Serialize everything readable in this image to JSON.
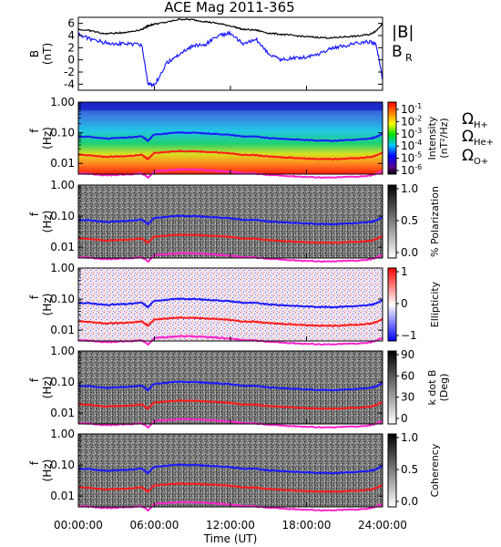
{
  "title": "ACE Mag 2011-365",
  "legend_top": {
    "b_label": "|B|",
    "br_label": "B",
    "br_sub": "R"
  },
  "gyro_labels": [
    {
      "sym": "Ω",
      "sub": "H+",
      "color": "#1a1aff"
    },
    {
      "sym": "Ω",
      "sub": "He+",
      "color": "#ff1a1a"
    },
    {
      "sym": "Ω",
      "sub": "O+",
      "color": "#ff22cc"
    }
  ],
  "colors": {
    "B_total": "#000000",
    "B_R": "#1a1aff",
    "H_plus": "#1a1aff",
    "He_plus": "#ff1a1a",
    "O_plus": "#ff22cc"
  },
  "x_axis": {
    "label": "Time (UT)",
    "ticks": [
      "00:00:00",
      "06:00:00",
      "12:00:00",
      "18:00:00",
      "24:00:00"
    ]
  },
  "chart_data": [
    {
      "type": "line",
      "panel": "magnetic-field",
      "ylabel_line1": "B",
      "ylabel_line2": "(nT)",
      "yticks": [
        "6",
        "4",
        "2",
        "0",
        "-2",
        "-4"
      ],
      "ylim": [
        -5,
        7
      ],
      "x_hours": [
        0,
        1,
        2,
        3,
        4,
        5,
        5.5,
        6,
        7,
        8,
        9,
        10,
        11,
        12,
        13,
        14,
        15,
        16,
        17,
        18,
        19,
        20,
        21,
        22,
        23,
        23.5,
        24
      ],
      "series": [
        {
          "name": "|B|",
          "values": [
            5.0,
            4.8,
            4.3,
            4.4,
            4.6,
            5.0,
            5.6,
            5.9,
            6.2,
            6.7,
            6.6,
            6.3,
            6.0,
            5.6,
            5.0,
            4.9,
            4.4,
            4.2,
            4.0,
            3.8,
            3.7,
            3.6,
            3.8,
            3.9,
            4.2,
            4.8,
            6.0
          ]
        },
        {
          "name": "B_R",
          "values": [
            4.2,
            3.4,
            2.9,
            2.7,
            2.6,
            2.5,
            -4.0,
            -4.2,
            -0.5,
            1.0,
            2.3,
            2.5,
            4.0,
            4.4,
            2.5,
            3.5,
            1.0,
            0.0,
            0.3,
            0.5,
            1.0,
            2.0,
            2.3,
            2.8,
            3.0,
            2.5,
            -3.2
          ]
        }
      ]
    },
    {
      "type": "heatmap",
      "panel": "power-spectral-density",
      "ylabel_line1": "f",
      "ylabel_line2": "(Hz)",
      "yticks": [
        "1.00",
        "0.10",
        "0.01"
      ],
      "colorbar_label": "Intensity (nT²/Hz)",
      "colorbar_ticks": [
        "10",
        "10",
        "10",
        "10",
        "10",
        "10"
      ],
      "colorbar_tick_exps": [
        "-1",
        "-2",
        "-3",
        "-4",
        "-5",
        "-6"
      ]
    },
    {
      "type": "heatmap",
      "panel": "polarization",
      "ylabel_line1": "f",
      "ylabel_line2": "(Hz)",
      "yticks": [
        "1.00",
        "0.10",
        "0.01"
      ],
      "colorbar_label": "% Polarization",
      "colorbar_ticks": [
        "1.0",
        "0.5",
        "0.0"
      ]
    },
    {
      "type": "heatmap",
      "panel": "ellipticity",
      "ylabel_line1": "f",
      "ylabel_line2": "(Hz)",
      "yticks": [
        "1.00",
        "0.10",
        "0.01"
      ],
      "colorbar_label": "Ellipticity",
      "colorbar_ticks": [
        "1",
        "0",
        "−1"
      ]
    },
    {
      "type": "heatmap",
      "panel": "wave-normal-angle",
      "ylabel_line1": "f",
      "ylabel_line2": "(Hz)",
      "yticks": [
        "1.00",
        "0.10",
        "0.01"
      ],
      "colorbar_label_line1": "k dot B",
      "colorbar_label_line2": "(Deg)",
      "colorbar_ticks": [
        "90",
        "60",
        "30",
        "0"
      ]
    },
    {
      "type": "heatmap",
      "panel": "coherency",
      "ylabel_line1": "f",
      "ylabel_line2": "(Hz)",
      "yticks": [
        "1.00",
        "0.10",
        "0.01"
      ],
      "colorbar_label": "Coherency",
      "colorbar_ticks": [
        "1.0",
        "0.5",
        "0.0"
      ]
    }
  ]
}
